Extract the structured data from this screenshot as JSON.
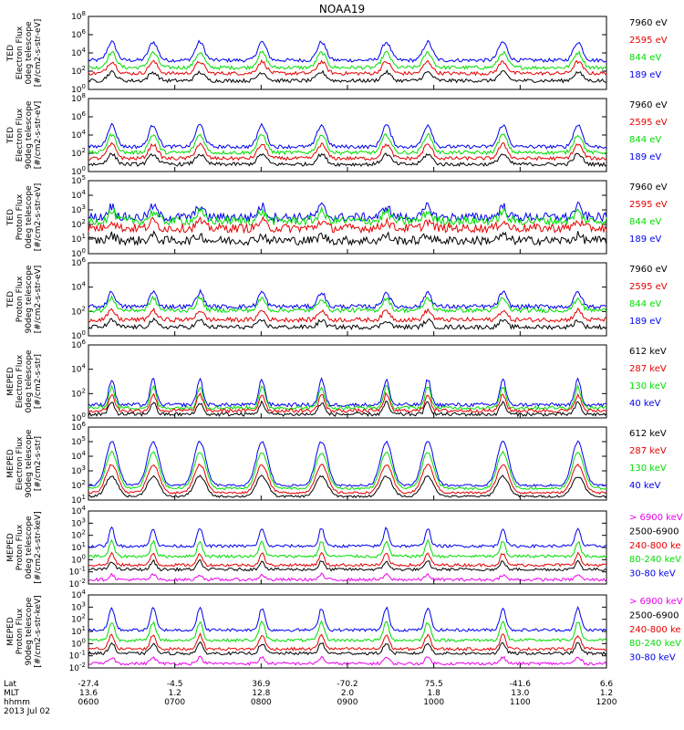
{
  "title": "NOAA19",
  "colors": {
    "black": "#000000",
    "red": "#e60000",
    "green": "#00dd00",
    "blue": "#0000ee",
    "magenta": "#ee00ee"
  },
  "footer": {
    "row_labels": [
      "Lat",
      "MLT",
      "hhmm",
      "2013 Jul 02"
    ],
    "lat": [
      "-27.4",
      "-4.5",
      "36.9",
      "-70.2",
      "75.5",
      "-41.6",
      "6.6"
    ],
    "mlt": [
      "13.6",
      "1.2",
      "12.8",
      "2.0",
      "1.8",
      "13.0",
      "1.2"
    ],
    "hhmm": [
      "0600",
      "0700",
      "0800",
      "0900",
      "1000",
      "1100",
      "1200"
    ]
  },
  "chart_data": [
    {
      "type": "line",
      "y_scale": "log",
      "ylabel": [
        "TED",
        "Electron Flux",
        "0deg telescope",
        "[#/cm2-s-str-eV]"
      ],
      "ylim_exp": [
        0,
        8
      ],
      "ytick_exp": [
        0,
        2,
        4,
        6,
        8
      ],
      "legend": [
        {
          "label": "7960 eV",
          "color": "#000000"
        },
        {
          "label": "2595 eV",
          "color": "#e60000"
        },
        {
          "label": "844 eV",
          "color": "#00dd00"
        },
        {
          "label": "189 eV",
          "color": "#0000ee"
        }
      ]
    },
    {
      "type": "line",
      "y_scale": "log",
      "ylabel": [
        "TED",
        "Electron Flux",
        "90deg telescope",
        "[#/cm2-s-str-eV]"
      ],
      "ylim_exp": [
        0,
        8
      ],
      "ytick_exp": [
        0,
        2,
        4,
        6,
        8
      ],
      "legend": [
        {
          "label": "7960 eV",
          "color": "#000000"
        },
        {
          "label": "2595 eV",
          "color": "#e60000"
        },
        {
          "label": "844 eV",
          "color": "#00dd00"
        },
        {
          "label": "189 eV",
          "color": "#0000ee"
        }
      ]
    },
    {
      "type": "line",
      "y_scale": "log",
      "ylabel": [
        "TED",
        "Proton Flux",
        "0deg telescope",
        "[#/cm2-s-str-eV]"
      ],
      "ylim_exp": [
        0,
        5
      ],
      "ytick_exp": [
        0,
        1,
        2,
        3,
        4,
        5
      ],
      "legend": [
        {
          "label": "7960 eV",
          "color": "#000000"
        },
        {
          "label": "2595 eV",
          "color": "#e60000"
        },
        {
          "label": "844 eV",
          "color": "#00dd00"
        },
        {
          "label": "189 eV",
          "color": "#0000ee"
        }
      ]
    },
    {
      "type": "line",
      "y_scale": "log",
      "ylabel": [
        "TED",
        "Proton Flux",
        "90deg telescope",
        "[#/cm2-s-str-eV]"
      ],
      "ylim_exp": [
        0,
        6
      ],
      "ytick_exp": [
        0,
        2,
        4,
        6
      ],
      "legend": [
        {
          "label": "7960 eV",
          "color": "#000000"
        },
        {
          "label": "2595 eV",
          "color": "#e60000"
        },
        {
          "label": "844 eV",
          "color": "#00dd00"
        },
        {
          "label": "189 eV",
          "color": "#0000ee"
        }
      ]
    },
    {
      "type": "line",
      "y_scale": "log",
      "ylabel": [
        "MEPED",
        "Electron Flux",
        "0deg telescope",
        "[#/cm2-s-str]"
      ],
      "ylim_exp": [
        0,
        6
      ],
      "ytick_exp": [
        0,
        2,
        4,
        6
      ],
      "legend": [
        {
          "label": "612 keV",
          "color": "#000000"
        },
        {
          "label": "287 keV",
          "color": "#e60000"
        },
        {
          "label": "130 keV",
          "color": "#00dd00"
        },
        {
          "label": "40 keV",
          "color": "#0000ee"
        }
      ]
    },
    {
      "type": "line",
      "y_scale": "log",
      "ylabel": [
        "MEPED",
        "Electron Flux",
        "90deg telescope",
        "[#/cm2-s-str]"
      ],
      "ylim_exp": [
        1,
        6
      ],
      "ytick_exp": [
        1,
        2,
        3,
        4,
        5,
        6
      ],
      "legend": [
        {
          "label": "612 keV",
          "color": "#000000"
        },
        {
          "label": "287 keV",
          "color": "#e60000"
        },
        {
          "label": "130 keV",
          "color": "#00dd00"
        },
        {
          "label": "40 keV",
          "color": "#0000ee"
        }
      ]
    },
    {
      "type": "line",
      "y_scale": "log",
      "ylabel": [
        "MEPED",
        "Proton Flux",
        "0deg telescope",
        "[#/cm2-s-str-keV]"
      ],
      "ylim_exp": [
        -2,
        4
      ],
      "ytick_exp": [
        -2,
        -1,
        0,
        1,
        2,
        3,
        4
      ],
      "legend": [
        {
          "label": "> 6900 keV",
          "color": "#ee00ee"
        },
        {
          "label": "2500-6900",
          "color": "#000000"
        },
        {
          "label": "240-800 ke",
          "color": "#e60000"
        },
        {
          "label": "80-240 keV",
          "color": "#00dd00"
        },
        {
          "label": "30-80 keV",
          "color": "#0000ee"
        }
      ]
    },
    {
      "type": "line",
      "y_scale": "log",
      "ylabel": [
        "MEPED",
        "Proton Flux",
        "90deg telescope",
        "[#/cm2-s-str-keV]"
      ],
      "ylim_exp": [
        -2,
        4
      ],
      "ytick_exp": [
        -2,
        -1,
        0,
        1,
        2,
        3,
        4
      ],
      "legend": [
        {
          "label": "> 6900 keV",
          "color": "#ee00ee"
        },
        {
          "label": "2500-6900",
          "color": "#000000"
        },
        {
          "label": "240-800 ke",
          "color": "#e60000"
        },
        {
          "label": "80-240 keV",
          "color": "#00dd00"
        },
        {
          "label": "30-80 keV",
          "color": "#0000ee"
        }
      ]
    }
  ]
}
